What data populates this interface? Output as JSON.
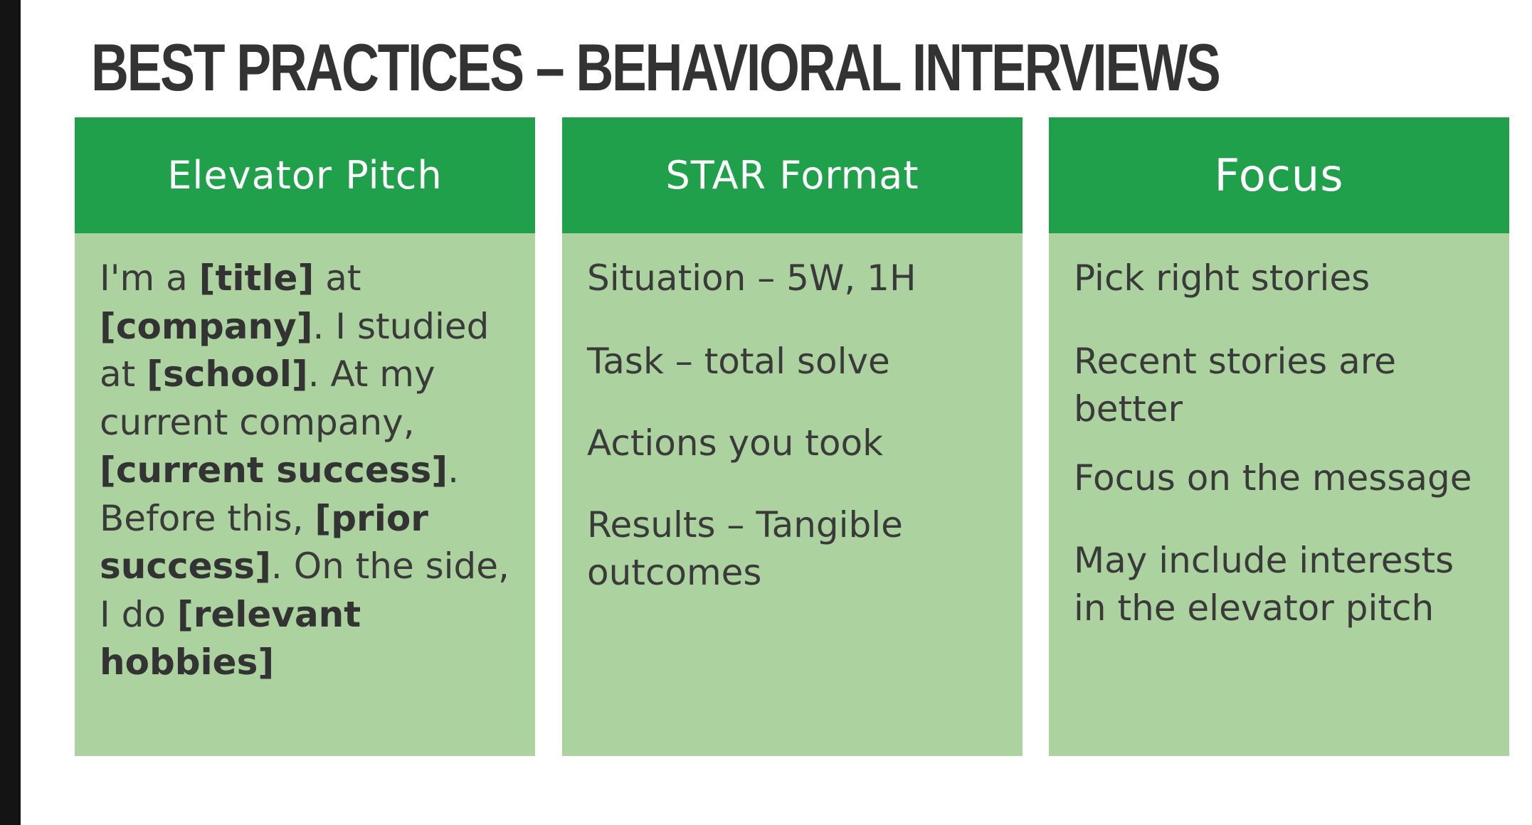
{
  "title": "BEST PRACTICES – BEHAVIORAL INTERVIEWS",
  "columns": [
    {
      "header": "Elevator Pitch",
      "pitch": [
        {
          "text": "I'm a ",
          "bold": false
        },
        {
          "text": "[title]",
          "bold": true
        },
        {
          "text": " at ",
          "bold": false
        },
        {
          "text": "[company]",
          "bold": true
        },
        {
          "text": ". I studied at ",
          "bold": false
        },
        {
          "text": "[school]",
          "bold": true
        },
        {
          "text": ". At my current company, ",
          "bold": false
        },
        {
          "text": "[current success]",
          "bold": true
        },
        {
          "text": ". Before this, ",
          "bold": false
        },
        {
          "text": "[prior success]",
          "bold": true
        },
        {
          "text": ". On the side, I do ",
          "bold": false
        },
        {
          "text": "[relevant hobbies]",
          "bold": true
        }
      ]
    },
    {
      "header": "STAR Format",
      "items": [
        "Situation – 5W, 1H",
        "Task – total solve",
        "Actions you took",
        "Results – Tangible outcomes"
      ]
    },
    {
      "header": "Focus",
      "items": [
        "Pick right stories",
        "Recent stories are better",
        "Focus on the message",
        "May include interests in the elevator pitch"
      ]
    }
  ],
  "colors": {
    "header_green": "#21a04b",
    "body_green": "#acd39f",
    "title_text": "#333333",
    "body_text": "#3a3a3a"
  }
}
